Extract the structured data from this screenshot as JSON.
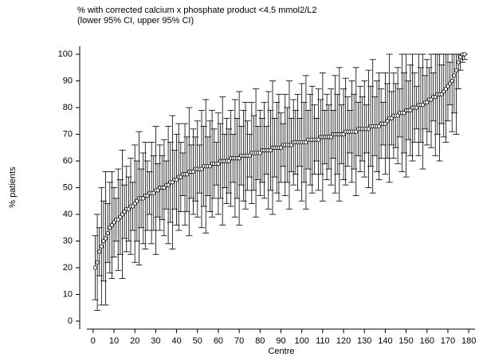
{
  "chart_data": {
    "type": "errorbar",
    "title": "% with corrected calcium x phosphate product <4.5 mmol2/L2",
    "subtitle": "(lower 95% CI, upper 95% CI)",
    "x_label": "Centre",
    "y_label": "% patients",
    "xlim": [
      -3,
      183
    ],
    "ylim": [
      -3,
      103
    ],
    "xticks": [
      0,
      10,
      20,
      30,
      40,
      50,
      60,
      70,
      80,
      90,
      100,
      110,
      120,
      130,
      140,
      150,
      160,
      170,
      180
    ],
    "yticks": [
      0,
      10,
      20,
      30,
      40,
      50,
      60,
      70,
      80,
      90,
      100
    ],
    "color": "#000000",
    "x": [
      1,
      2,
      3,
      4,
      5,
      6,
      7,
      8,
      9,
      10,
      11,
      12,
      13,
      14,
      15,
      16,
      17,
      18,
      19,
      20,
      21,
      22,
      23,
      24,
      25,
      26,
      27,
      28,
      29,
      30,
      31,
      32,
      33,
      34,
      35,
      36,
      37,
      38,
      39,
      40,
      41,
      42,
      43,
      44,
      45,
      46,
      47,
      48,
      49,
      50,
      51,
      52,
      53,
      54,
      55,
      56,
      57,
      58,
      59,
      60,
      61,
      62,
      63,
      64,
      65,
      66,
      67,
      68,
      69,
      70,
      71,
      72,
      73,
      74,
      75,
      76,
      77,
      78,
      79,
      80,
      81,
      82,
      83,
      84,
      85,
      86,
      87,
      88,
      89,
      90,
      91,
      92,
      93,
      94,
      95,
      96,
      97,
      98,
      99,
      100,
      101,
      102,
      103,
      104,
      105,
      106,
      107,
      108,
      109,
      110,
      111,
      112,
      113,
      114,
      115,
      116,
      117,
      118,
      119,
      120,
      121,
      122,
      123,
      124,
      125,
      126,
      127,
      128,
      129,
      130,
      131,
      132,
      133,
      134,
      135,
      136,
      137,
      138,
      139,
      140,
      141,
      142,
      143,
      144,
      145,
      146,
      147,
      148,
      149,
      150,
      151,
      152,
      153,
      154,
      155,
      156,
      157,
      158,
      159,
      160,
      161,
      162,
      163,
      164,
      165,
      166,
      167,
      168,
      169,
      170,
      171,
      172,
      173,
      174,
      175,
      176,
      177,
      178
    ],
    "values": [
      20,
      22,
      26,
      28,
      30,
      31,
      33,
      35,
      36,
      37,
      38,
      38,
      39,
      40,
      41,
      42,
      42,
      43,
      43,
      44,
      45,
      46,
      46,
      46,
      47,
      47,
      48,
      48,
      48,
      49,
      49,
      50,
      50,
      50,
      51,
      51,
      52,
      52,
      53,
      53,
      54,
      54,
      55,
      55,
      55,
      56,
      56,
      56,
      57,
      57,
      57,
      57,
      58,
      58,
      58,
      58,
      59,
      59,
      59,
      59,
      60,
      60,
      60,
      60,
      60,
      61,
      61,
      61,
      61,
      61,
      62,
      62,
      62,
      62,
      62,
      63,
      63,
      63,
      63,
      63,
      64,
      64,
      64,
      64,
      64,
      65,
      65,
      65,
      65,
      65,
      66,
      66,
      66,
      66,
      66,
      67,
      67,
      67,
      67,
      67,
      67,
      67,
      68,
      68,
      68,
      68,
      68,
      68,
      69,
      69,
      69,
      69,
      69,
      69,
      70,
      70,
      70,
      70,
      70,
      70,
      71,
      71,
      71,
      71,
      71,
      71,
      72,
      72,
      72,
      72,
      72,
      72,
      73,
      73,
      73,
      73,
      73,
      74,
      74,
      74,
      75,
      76,
      76,
      77,
      77,
      77,
      78,
      78,
      78,
      79,
      79,
      79,
      80,
      80,
      80,
      81,
      81,
      81,
      82,
      82,
      83,
      83,
      84,
      84,
      85,
      85,
      85,
      86,
      87,
      88,
      89,
      90,
      92,
      94,
      97,
      99,
      100,
      100
    ],
    "lower": [
      8,
      4,
      17,
      6,
      15,
      6,
      22,
      18,
      16,
      24,
      30,
      19,
      25,
      16,
      31,
      26,
      30,
      25,
      34,
      22,
      30,
      21,
      35,
      29,
      27,
      34,
      40,
      29,
      34,
      25,
      39,
      34,
      38,
      32,
      42,
      29,
      37,
      27,
      42,
      36,
      34,
      41,
      47,
      36,
      41,
      32,
      46,
      40,
      45,
      39,
      48,
      35,
      43,
      33,
      47,
      41,
      39,
      46,
      51,
      40,
      46,
      36,
      50,
      44,
      48,
      43,
      52,
      39,
      46,
      36,
      51,
      45,
      42,
      49,
      54,
      44,
      49,
      39,
      53,
      47,
      52,
      46,
      55,
      42,
      49,
      40,
      54,
      48,
      45,
      52,
      58,
      47,
      52,
      42,
      56,
      51,
      55,
      49,
      58,
      45,
      52,
      42,
      57,
      51,
      48,
      55,
      60,
      49,
      55,
      45,
      59,
      53,
      57,
      51,
      61,
      48,
      55,
      45,
      59,
      53,
      51,
      58,
      63,
      52,
      57,
      47,
      62,
      56,
      60,
      54,
      63,
      50,
      58,
      48,
      62,
      56,
      53,
      61,
      66,
      55,
      61,
      52,
      66,
      61,
      65,
      59,
      69,
      56,
      63,
      54,
      68,
      62,
      60,
      67,
      72,
      62,
      67,
      57,
      72,
      66,
      71,
      65,
      75,
      62,
      70,
      60,
      74,
      69,
      67,
      75,
      81,
      71,
      78,
      70,
      87,
      94,
      97,
      98
    ],
    "upper": [
      32,
      40,
      35,
      50,
      45,
      56,
      44,
      52,
      56,
      50,
      46,
      57,
      53,
      64,
      51,
      58,
      54,
      61,
      52,
      66,
      60,
      71,
      57,
      63,
      67,
      60,
      56,
      67,
      62,
      73,
      59,
      66,
      62,
      68,
      60,
      73,
      67,
      77,
      64,
      70,
      74,
      67,
      63,
      74,
      69,
      80,
      66,
      72,
      69,
      75,
      66,
      79,
      73,
      83,
      69,
      75,
      79,
      72,
      67,
      78,
      74,
      84,
      70,
      76,
      72,
      79,
      70,
      83,
      76,
      86,
      73,
      79,
      82,
      75,
      70,
      82,
      77,
      87,
      73,
      79,
      76,
      82,
      73,
      86,
      79,
      90,
      76,
      82,
      85,
      78,
      74,
      85,
      80,
      90,
      76,
      83,
      79,
      85,
      76,
      89,
      82,
      92,
      79,
      85,
      88,
      81,
      76,
      87,
      83,
      93,
      79,
      85,
      81,
      87,
      79,
      92,
      85,
      95,
      81,
      87,
      91,
      84,
      79,
      90,
      85,
      95,
      82,
      88,
      84,
      90,
      81,
      94,
      88,
      98,
      84,
      90,
      93,
      87,
      82,
      93,
      89,
      100,
      86,
      93,
      89,
      95,
      87,
      100,
      93,
      100,
      90,
      96,
      100,
      93,
      88,
      100,
      95,
      100,
      92,
      98,
      95,
      100,
      93,
      100,
      100,
      100,
      96,
      100,
      100,
      100,
      97,
      100,
      100,
      100,
      100,
      100,
      100,
      100
    ]
  }
}
